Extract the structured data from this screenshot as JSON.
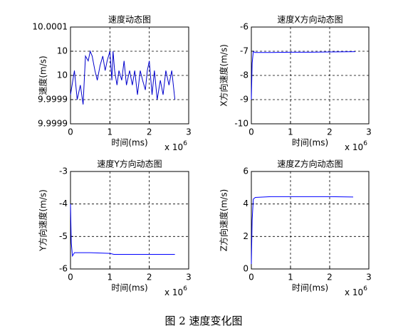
{
  "chart_data": [
    {
      "type": "line",
      "title": "速度动态图",
      "xlabel": "时间(ms)",
      "ylabel": "速度(m/s)",
      "x_multiplier": {
        "base": "x 10",
        "exponent": "6"
      },
      "xlim": [
        0,
        3
      ],
      "xticks": [
        0,
        1,
        2,
        3
      ],
      "ylim": [
        9.9999,
        10.0001
      ],
      "yticks": [
        {
          "value": 9.9999,
          "label": "9.9999"
        },
        {
          "value": 9.99995,
          "label": "9.9999"
        },
        {
          "value": 10,
          "label": "10"
        },
        {
          "value": 10.00005,
          "label": "10"
        },
        {
          "value": 10.0001,
          "label": "10.0001"
        }
      ],
      "grid": true,
      "series": [
        {
          "color": "#0000cc",
          "x": [
            0,
            0.1,
            0.17,
            0.25,
            0.32,
            0.38,
            0.45,
            0.5,
            0.55,
            0.62,
            0.68,
            0.75,
            0.82,
            0.88,
            0.93,
            1.0,
            1.05,
            1.08,
            1.12,
            1.18,
            1.23,
            1.3,
            1.36,
            1.42,
            1.5,
            1.57,
            1.63,
            1.7,
            1.77,
            1.83,
            1.9,
            1.95,
            2.0,
            2.07,
            2.13,
            2.2,
            2.28,
            2.35,
            2.42,
            2.5,
            2.57,
            2.65
          ],
          "values": [
            9.99996,
            10.00001,
            9.99995,
            9.99998,
            9.99994,
            10.00004,
            10.00003,
            10.00005,
            10.00004,
            10.00001,
            9.99999,
            10.00002,
            10.00004,
            10.00001,
            10.00003,
            10.00005,
            9.99999,
            10.00005,
            10.00001,
            9.99998,
            10.00001,
            9.99999,
            10.00003,
            9.99998,
            10.00001,
            9.99998,
            10.00001,
            9.99996,
            10.00001,
            9.99999,
            9.99997,
            10.00001,
            10.00003,
            9.99996,
            10.00001,
            9.99995,
            9.99999,
            9.99996,
            10.00001,
            9.99998,
            10.00001,
            9.99995
          ]
        }
      ]
    },
    {
      "type": "line",
      "title": "速度X方向动态图",
      "xlabel": "时间(ms)",
      "ylabel": "X方向速度(m/s)",
      "x_multiplier": {
        "base": "x 10",
        "exponent": "6"
      },
      "xlim": [
        0,
        3
      ],
      "xticks": [
        0,
        1,
        2,
        3
      ],
      "ylim": [
        -10,
        -6
      ],
      "yticks": [
        -10,
        -9,
        -8,
        -7,
        -6
      ],
      "grid": true,
      "series": [
        {
          "color": "#0000ff",
          "x": [
            0,
            0.02,
            0.05,
            0.1,
            0.5,
            1,
            1.5,
            2,
            2.65
          ],
          "values": [
            -9,
            -7.5,
            -7.02,
            -7.05,
            -7.05,
            -7.04,
            -7.04,
            -7.03,
            -7.02
          ]
        }
      ]
    },
    {
      "type": "line",
      "title": "速度Y方向动态图",
      "xlabel": "时间(ms)",
      "ylabel": "Y方向速度(m/s)",
      "x_multiplier": {
        "base": "x 10",
        "exponent": "6"
      },
      "xlim": [
        0,
        3
      ],
      "xticks": [
        0,
        1,
        2,
        3
      ],
      "ylim": [
        -6,
        -3
      ],
      "yticks": [
        -6,
        -5,
        -4,
        -3
      ],
      "grid": true,
      "series": [
        {
          "color": "#0000ff",
          "x": [
            0,
            0.02,
            0.05,
            0.1,
            0.5,
            1,
            1.1,
            2,
            2.65
          ],
          "values": [
            -4,
            -5.2,
            -5.6,
            -5.5,
            -5.5,
            -5.52,
            -5.55,
            -5.55,
            -5.55
          ]
        }
      ]
    },
    {
      "type": "line",
      "title": "速度Z方向动态图",
      "xlabel": "时间(ms)",
      "ylabel": "Z方向速度(m/s)",
      "x_multiplier": {
        "base": "x 10",
        "exponent": "6"
      },
      "xlim": [
        0,
        3
      ],
      "xticks": [
        0,
        1,
        2,
        3
      ],
      "ylim": [
        0,
        6
      ],
      "yticks": [
        0,
        2,
        4,
        6
      ],
      "grid": true,
      "series": [
        {
          "color": "#0000ff",
          "x": [
            0,
            0.02,
            0.05,
            0.1,
            0.5,
            1,
            2,
            2.6
          ],
          "values": [
            0.3,
            3,
            4.3,
            4.4,
            4.45,
            4.45,
            4.45,
            4.43
          ]
        }
      ]
    }
  ],
  "caption": "图 2  速度变化图"
}
